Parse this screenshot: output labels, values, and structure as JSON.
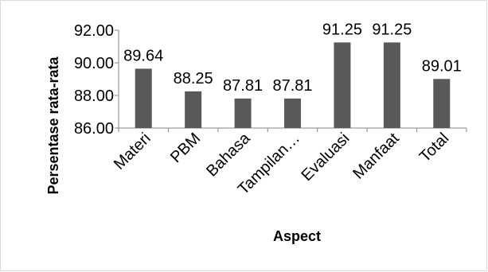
{
  "chart_data": {
    "type": "bar",
    "title": "",
    "xlabel": "Aspect",
    "ylabel": "Persentase rata-rata",
    "categories": [
      "Materi",
      "PBM",
      "Bahasa",
      "Tampilan…",
      "Evaluasi",
      "Manfaat",
      "Total"
    ],
    "values": [
      89.64,
      88.25,
      87.81,
      87.81,
      91.25,
      91.25,
      89.01
    ],
    "value_labels": [
      "89.64",
      "88.25",
      "87.81",
      "87.81",
      "91.25",
      "91.25",
      "89.01"
    ],
    "yticks": [
      "86.00",
      "88.00",
      "90.00",
      "92.00"
    ],
    "ytick_values": [
      86,
      88,
      90,
      92
    ],
    "ylim": [
      86,
      92
    ],
    "bar_color": "#595959",
    "grid": false,
    "legend": false
  }
}
